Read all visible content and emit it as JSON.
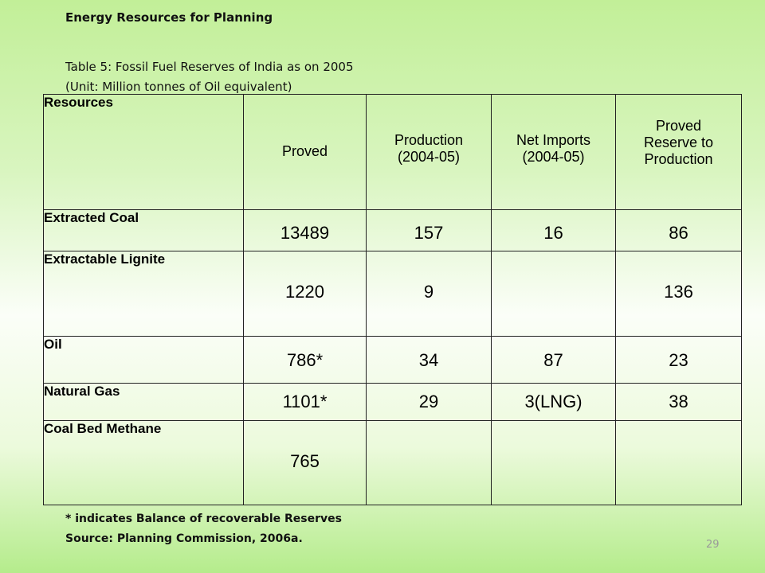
{
  "heading": "Energy Resources for Planning",
  "table_title": "Table 5: Fossil Fuel Reserves of India as on 2005",
  "table_unit": "(Unit: Million tonnes of Oil equivalent)",
  "table": {
    "headers": {
      "resources": "Resources",
      "proved": "Proved",
      "production_line1": "Production",
      "production_line2": "(2004-05)",
      "imports_line1": "Net Imports",
      "imports_line2": "(2004-05)",
      "ratio_line1": "Proved",
      "ratio_line2": "Reserve to",
      "ratio_line3": "Production"
    },
    "rows": [
      {
        "resource": "Extracted Coal",
        "proved": "13489",
        "production": "157",
        "imports": "16",
        "ratio": "86"
      },
      {
        "resource": "Extractable Lignite",
        "proved": "1220",
        "production": "9",
        "imports": "",
        "ratio": "136"
      },
      {
        "resource": "Oil",
        "proved": "786*",
        "production": "34",
        "imports": "87",
        "ratio": "23"
      },
      {
        "resource": "Natural Gas",
        "proved": "1101*",
        "production": "29",
        "imports": "3(LNG)",
        "ratio": "38"
      },
      {
        "resource": "Coal Bed Methane",
        "proved": "765",
        "production": "",
        "imports": "",
        "ratio": ""
      }
    ]
  },
  "footnote": "* indicates Balance of recoverable Reserves",
  "source": "Source: Planning Commission, 2006a.",
  "page_number": "29"
}
